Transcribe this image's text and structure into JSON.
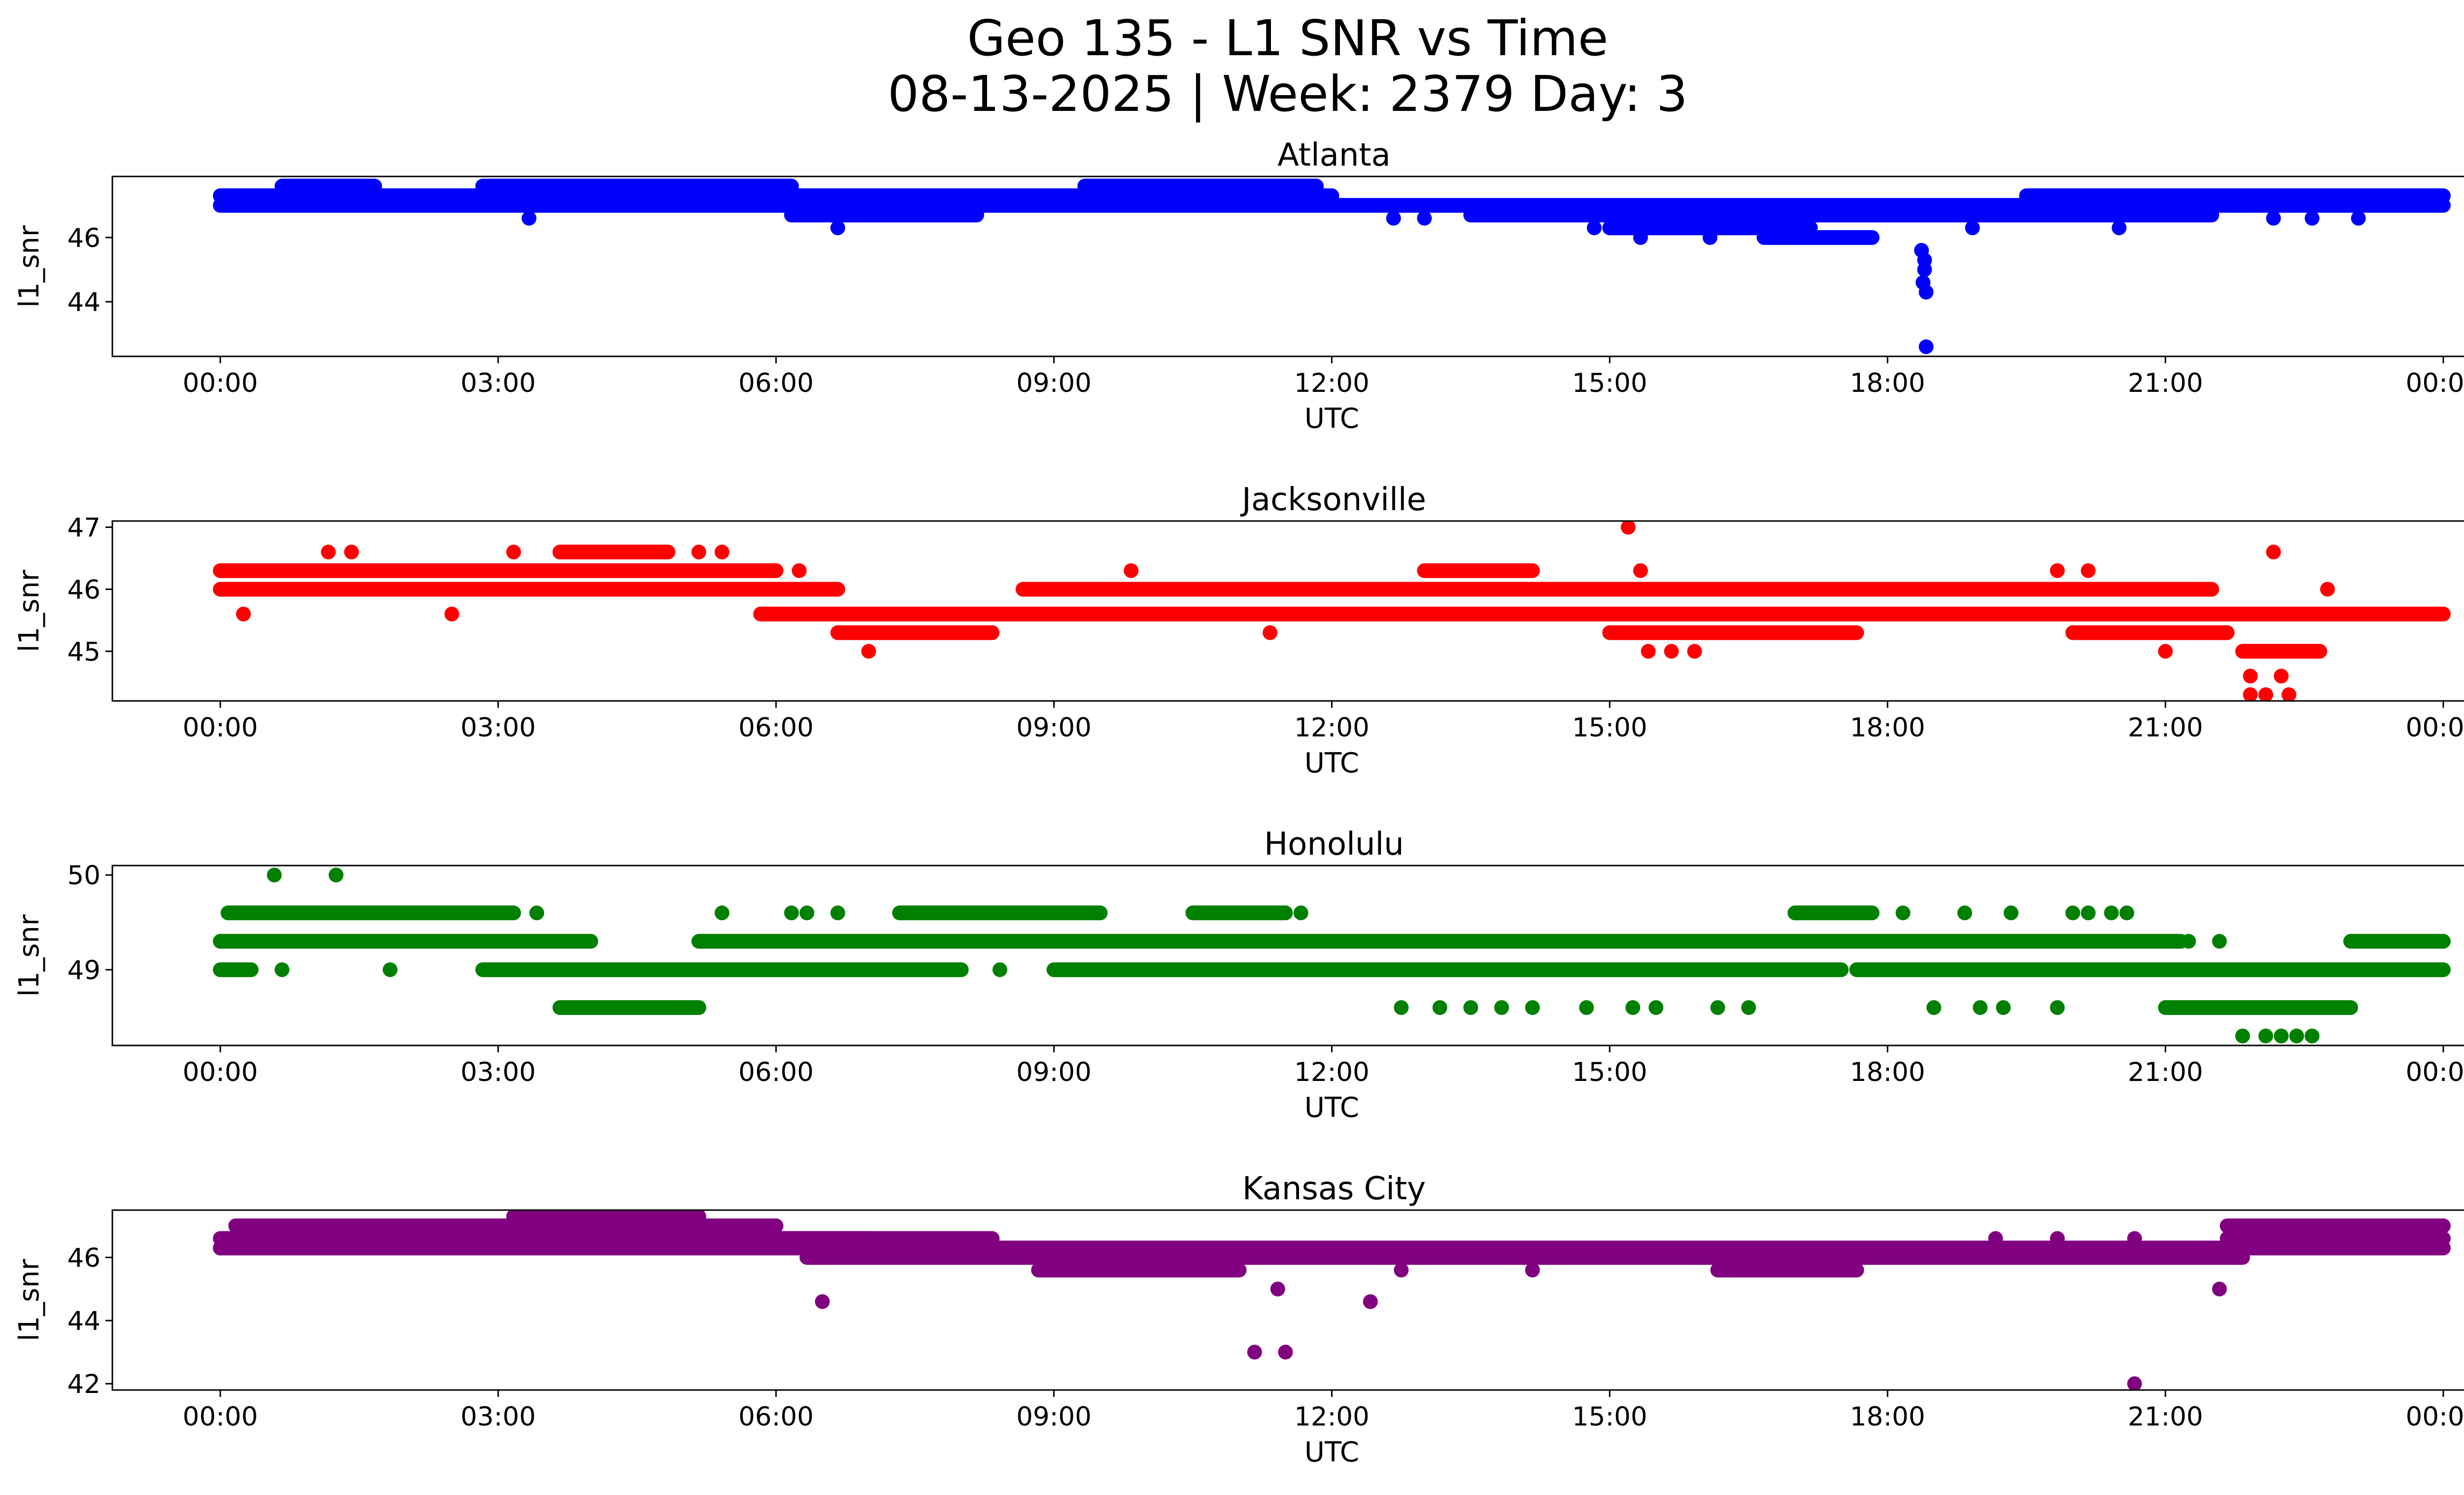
{
  "figure": {
    "title_line1": "Geo 135 - L1 SNR vs Time",
    "title_line2": "08-13-2025 | Week: 2379 Day: 3"
  },
  "chart_data": [
    {
      "type": "scatter",
      "title": "Atlanta",
      "xlabel": "UTC",
      "ylabel": "l1_snr",
      "color": "#0000ff",
      "xlim": [
        "00:00",
        "24:00"
      ],
      "ylim": [
        42.3,
        47.9
      ],
      "x_ticks": [
        "00:00",
        "03:00",
        "06:00",
        "09:00",
        "12:00",
        "15:00",
        "18:00",
        "21:00",
        "00:00"
      ],
      "y_ticks": [
        "44",
        "46"
      ],
      "y_tick_values": [
        44,
        46
      ],
      "bands": [
        {
          "value": 47.3,
          "from": "00:00",
          "to": "12:00"
        },
        {
          "value": 47.0,
          "from": "00:00",
          "to": "24:00"
        },
        {
          "value": 47.6,
          "from": "00:40",
          "to": "01:40"
        },
        {
          "value": 47.6,
          "from": "02:50",
          "to": "06:10"
        },
        {
          "value": 47.6,
          "from": "09:20",
          "to": "11:50"
        },
        {
          "value": 46.7,
          "from": "06:10",
          "to": "08:10"
        },
        {
          "value": 46.7,
          "from": "13:30",
          "to": "21:30"
        },
        {
          "value": 47.3,
          "from": "19:30",
          "to": "24:00"
        },
        {
          "value": 46.3,
          "from": "15:00",
          "to": "17:10"
        },
        {
          "value": 46.0,
          "from": "16:40",
          "to": "17:50"
        }
      ],
      "points": [
        {
          "x": "18:22",
          "y": 45.6
        },
        {
          "x": "18:24",
          "y": 45.3
        },
        {
          "x": "18:24",
          "y": 45.0
        },
        {
          "x": "18:23",
          "y": 44.6
        },
        {
          "x": "18:25",
          "y": 44.3
        },
        {
          "x": "18:25",
          "y": 42.6
        },
        {
          "x": "03:20",
          "y": 46.6
        },
        {
          "x": "06:40",
          "y": 46.3
        },
        {
          "x": "12:40",
          "y": 46.6
        },
        {
          "x": "13:00",
          "y": 46.6
        },
        {
          "x": "14:50",
          "y": 46.3
        },
        {
          "x": "15:20",
          "y": 46.0
        },
        {
          "x": "16:05",
          "y": 46.0
        },
        {
          "x": "18:55",
          "y": 46.3
        },
        {
          "x": "20:30",
          "y": 46.3
        },
        {
          "x": "22:35",
          "y": 46.6
        },
        {
          "x": "23:05",
          "y": 46.6
        },
        {
          "x": "22:10",
          "y": 46.6
        }
      ]
    },
    {
      "type": "scatter",
      "title": "Jacksonville",
      "xlabel": "UTC",
      "ylabel": "l1_snr",
      "color": "#ff0000",
      "xlim": [
        "00:00",
        "24:00"
      ],
      "ylim": [
        44.2,
        47.1
      ],
      "x_ticks": [
        "00:00",
        "03:00",
        "06:00",
        "09:00",
        "12:00",
        "15:00",
        "18:00",
        "21:00",
        "00:00"
      ],
      "y_ticks": [
        "45",
        "46",
        "47"
      ],
      "y_tick_values": [
        45,
        46,
        47
      ],
      "bands": [
        {
          "value": 46.3,
          "from": "00:00",
          "to": "06:00"
        },
        {
          "value": 46.0,
          "from": "00:00",
          "to": "06:40"
        },
        {
          "value": 46.0,
          "from": "08:40",
          "to": "21:30"
        },
        {
          "value": 45.6,
          "from": "05:50",
          "to": "24:00"
        },
        {
          "value": 45.3,
          "from": "06:40",
          "to": "08:20"
        },
        {
          "value": 45.3,
          "from": "15:00",
          "to": "17:40"
        },
        {
          "value": 45.3,
          "from": "20:00",
          "to": "21:40"
        },
        {
          "value": 46.6,
          "from": "03:40",
          "to": "04:50"
        },
        {
          "value": 45.0,
          "from": "21:50",
          "to": "22:40"
        },
        {
          "value": 46.3,
          "from": "13:00",
          "to": "14:10"
        }
      ],
      "points": [
        {
          "x": "00:15",
          "y": 45.6
        },
        {
          "x": "01:10",
          "y": 46.6
        },
        {
          "x": "01:25",
          "y": 46.6
        },
        {
          "x": "02:30",
          "y": 45.6
        },
        {
          "x": "03:10",
          "y": 46.6
        },
        {
          "x": "05:10",
          "y": 46.6
        },
        {
          "x": "05:25",
          "y": 46.6
        },
        {
          "x": "06:15",
          "y": 46.3
        },
        {
          "x": "07:00",
          "y": 45.0
        },
        {
          "x": "11:20",
          "y": 45.3
        },
        {
          "x": "15:12",
          "y": 47.0
        },
        {
          "x": "15:20",
          "y": 46.3
        },
        {
          "x": "15:25",
          "y": 45.0
        },
        {
          "x": "15:40",
          "y": 45.0
        },
        {
          "x": "15:55",
          "y": 45.0
        },
        {
          "x": "21:55",
          "y": 44.6
        },
        {
          "x": "22:05",
          "y": 44.3
        },
        {
          "x": "22:10",
          "y": 46.6
        },
        {
          "x": "22:15",
          "y": 44.6
        },
        {
          "x": "22:20",
          "y": 44.3
        },
        {
          "x": "21:55",
          "y": 44.3
        },
        {
          "x": "22:45",
          "y": 46.0
        },
        {
          "x": "21:00",
          "y": 45.0
        },
        {
          "x": "09:50",
          "y": 46.3
        },
        {
          "x": "19:50",
          "y": 46.3
        },
        {
          "x": "20:10",
          "y": 46.3
        }
      ]
    },
    {
      "type": "scatter",
      "title": "Honolulu",
      "xlabel": "UTC",
      "ylabel": "l1_snr",
      "color": "#008000",
      "xlim": [
        "00:00",
        "24:00"
      ],
      "ylim": [
        48.2,
        50.1
      ],
      "x_ticks": [
        "00:00",
        "03:00",
        "06:00",
        "09:00",
        "12:00",
        "15:00",
        "18:00",
        "21:00",
        "00:00"
      ],
      "y_ticks": [
        "49",
        "50"
      ],
      "y_tick_values": [
        49,
        50
      ],
      "bands": [
        {
          "value": 49.3,
          "from": "00:00",
          "to": "04:00"
        },
        {
          "value": 49.3,
          "from": "05:10",
          "to": "21:10"
        },
        {
          "value": 49.3,
          "from": "23:00",
          "to": "24:00"
        },
        {
          "value": 49.0,
          "from": "02:50",
          "to": "08:00"
        },
        {
          "value": 49.0,
          "from": "09:00",
          "to": "17:30"
        },
        {
          "value": 49.0,
          "from": "17:40",
          "to": "24:00"
        },
        {
          "value": 49.6,
          "from": "00:05",
          "to": "03:10"
        },
        {
          "value": 49.6,
          "from": "07:20",
          "to": "09:30"
        },
        {
          "value": 49.6,
          "from": "10:30",
          "to": "11:30"
        },
        {
          "value": 49.6,
          "from": "17:00",
          "to": "17:50"
        },
        {
          "value": 48.6,
          "from": "03:40",
          "to": "05:10"
        },
        {
          "value": 48.6,
          "from": "21:00",
          "to": "23:00"
        },
        {
          "value": 49.0,
          "from": "00:00",
          "to": "00:20"
        }
      ],
      "points": [
        {
          "x": "00:35",
          "y": 50.0
        },
        {
          "x": "01:15",
          "y": 50.0
        },
        {
          "x": "00:40",
          "y": 49.0
        },
        {
          "x": "01:50",
          "y": 49.0
        },
        {
          "x": "03:25",
          "y": 49.6
        },
        {
          "x": "05:25",
          "y": 49.6
        },
        {
          "x": "06:10",
          "y": 49.6
        },
        {
          "x": "06:20",
          "y": 49.6
        },
        {
          "x": "06:40",
          "y": 49.6
        },
        {
          "x": "08:25",
          "y": 49.0
        },
        {
          "x": "11:40",
          "y": 49.6
        },
        {
          "x": "12:45",
          "y": 48.6
        },
        {
          "x": "13:10",
          "y": 48.6
        },
        {
          "x": "13:30",
          "y": 48.6
        },
        {
          "x": "13:50",
          "y": 48.6
        },
        {
          "x": "14:10",
          "y": 48.6
        },
        {
          "x": "14:45",
          "y": 48.6
        },
        {
          "x": "15:15",
          "y": 48.6
        },
        {
          "x": "15:30",
          "y": 48.6
        },
        {
          "x": "16:10",
          "y": 48.6
        },
        {
          "x": "16:30",
          "y": 48.6
        },
        {
          "x": "18:10",
          "y": 49.6
        },
        {
          "x": "18:30",
          "y": 48.6
        },
        {
          "x": "18:50",
          "y": 49.6
        },
        {
          "x": "19:00",
          "y": 48.6
        },
        {
          "x": "19:15",
          "y": 48.6
        },
        {
          "x": "19:20",
          "y": 49.6
        },
        {
          "x": "19:50",
          "y": 48.6
        },
        {
          "x": "20:00",
          "y": 49.6
        },
        {
          "x": "20:10",
          "y": 49.6
        },
        {
          "x": "20:25",
          "y": 49.6
        },
        {
          "x": "20:35",
          "y": 49.6
        },
        {
          "x": "21:15",
          "y": 49.3
        },
        {
          "x": "21:35",
          "y": 49.3
        },
        {
          "x": "21:50",
          "y": 48.3
        },
        {
          "x": "22:05",
          "y": 48.3
        },
        {
          "x": "22:15",
          "y": 48.3
        },
        {
          "x": "22:25",
          "y": 48.3
        },
        {
          "x": "22:35",
          "y": 48.3
        }
      ]
    },
    {
      "type": "scatter",
      "title": "Kansas City",
      "xlabel": "UTC",
      "ylabel": "l1_snr",
      "color": "#800080",
      "xlim": [
        "00:00",
        "24:00"
      ],
      "ylim": [
        41.8,
        47.5
      ],
      "x_ticks": [
        "00:00",
        "03:00",
        "06:00",
        "09:00",
        "12:00",
        "15:00",
        "18:00",
        "21:00",
        "00:00"
      ],
      "y_ticks": [
        "42",
        "44",
        "46"
      ],
      "y_tick_values": [
        42,
        44,
        46
      ],
      "bands": [
        {
          "value": 46.3,
          "from": "00:00",
          "to": "24:00"
        },
        {
          "value": 46.6,
          "from": "00:00",
          "to": "07:00"
        },
        {
          "value": 47.0,
          "from": "00:10",
          "to": "02:00"
        },
        {
          "value": 47.0,
          "from": "02:00",
          "to": "06:00"
        },
        {
          "value": 47.3,
          "from": "03:10",
          "to": "05:10"
        },
        {
          "value": 46.0,
          "from": "06:20",
          "to": "21:50"
        },
        {
          "value": 45.6,
          "from": "08:50",
          "to": "11:00"
        },
        {
          "value": 45.6,
          "from": "16:10",
          "to": "17:40"
        },
        {
          "value": 46.6,
          "from": "21:40",
          "to": "24:00"
        },
        {
          "value": 47.0,
          "from": "21:40",
          "to": "24:00"
        },
        {
          "value": 46.6,
          "from": "06:00",
          "to": "08:20"
        }
      ],
      "points": [
        {
          "x": "06:30",
          "y": 44.6
        },
        {
          "x": "11:10",
          "y": 43.0
        },
        {
          "x": "11:25",
          "y": 45.0
        },
        {
          "x": "11:30",
          "y": 43.0
        },
        {
          "x": "12:25",
          "y": 44.6
        },
        {
          "x": "20:40",
          "y": 42.0
        },
        {
          "x": "21:35",
          "y": 45.0
        },
        {
          "x": "14:10",
          "y": 45.6
        },
        {
          "x": "12:45",
          "y": 45.6
        },
        {
          "x": "19:10",
          "y": 46.6
        },
        {
          "x": "19:50",
          "y": 46.6
        },
        {
          "x": "20:40",
          "y": 46.6
        },
        {
          "x": "02:25",
          "y": 46.3
        },
        {
          "x": "00:00",
          "y": 46.3
        }
      ]
    }
  ]
}
